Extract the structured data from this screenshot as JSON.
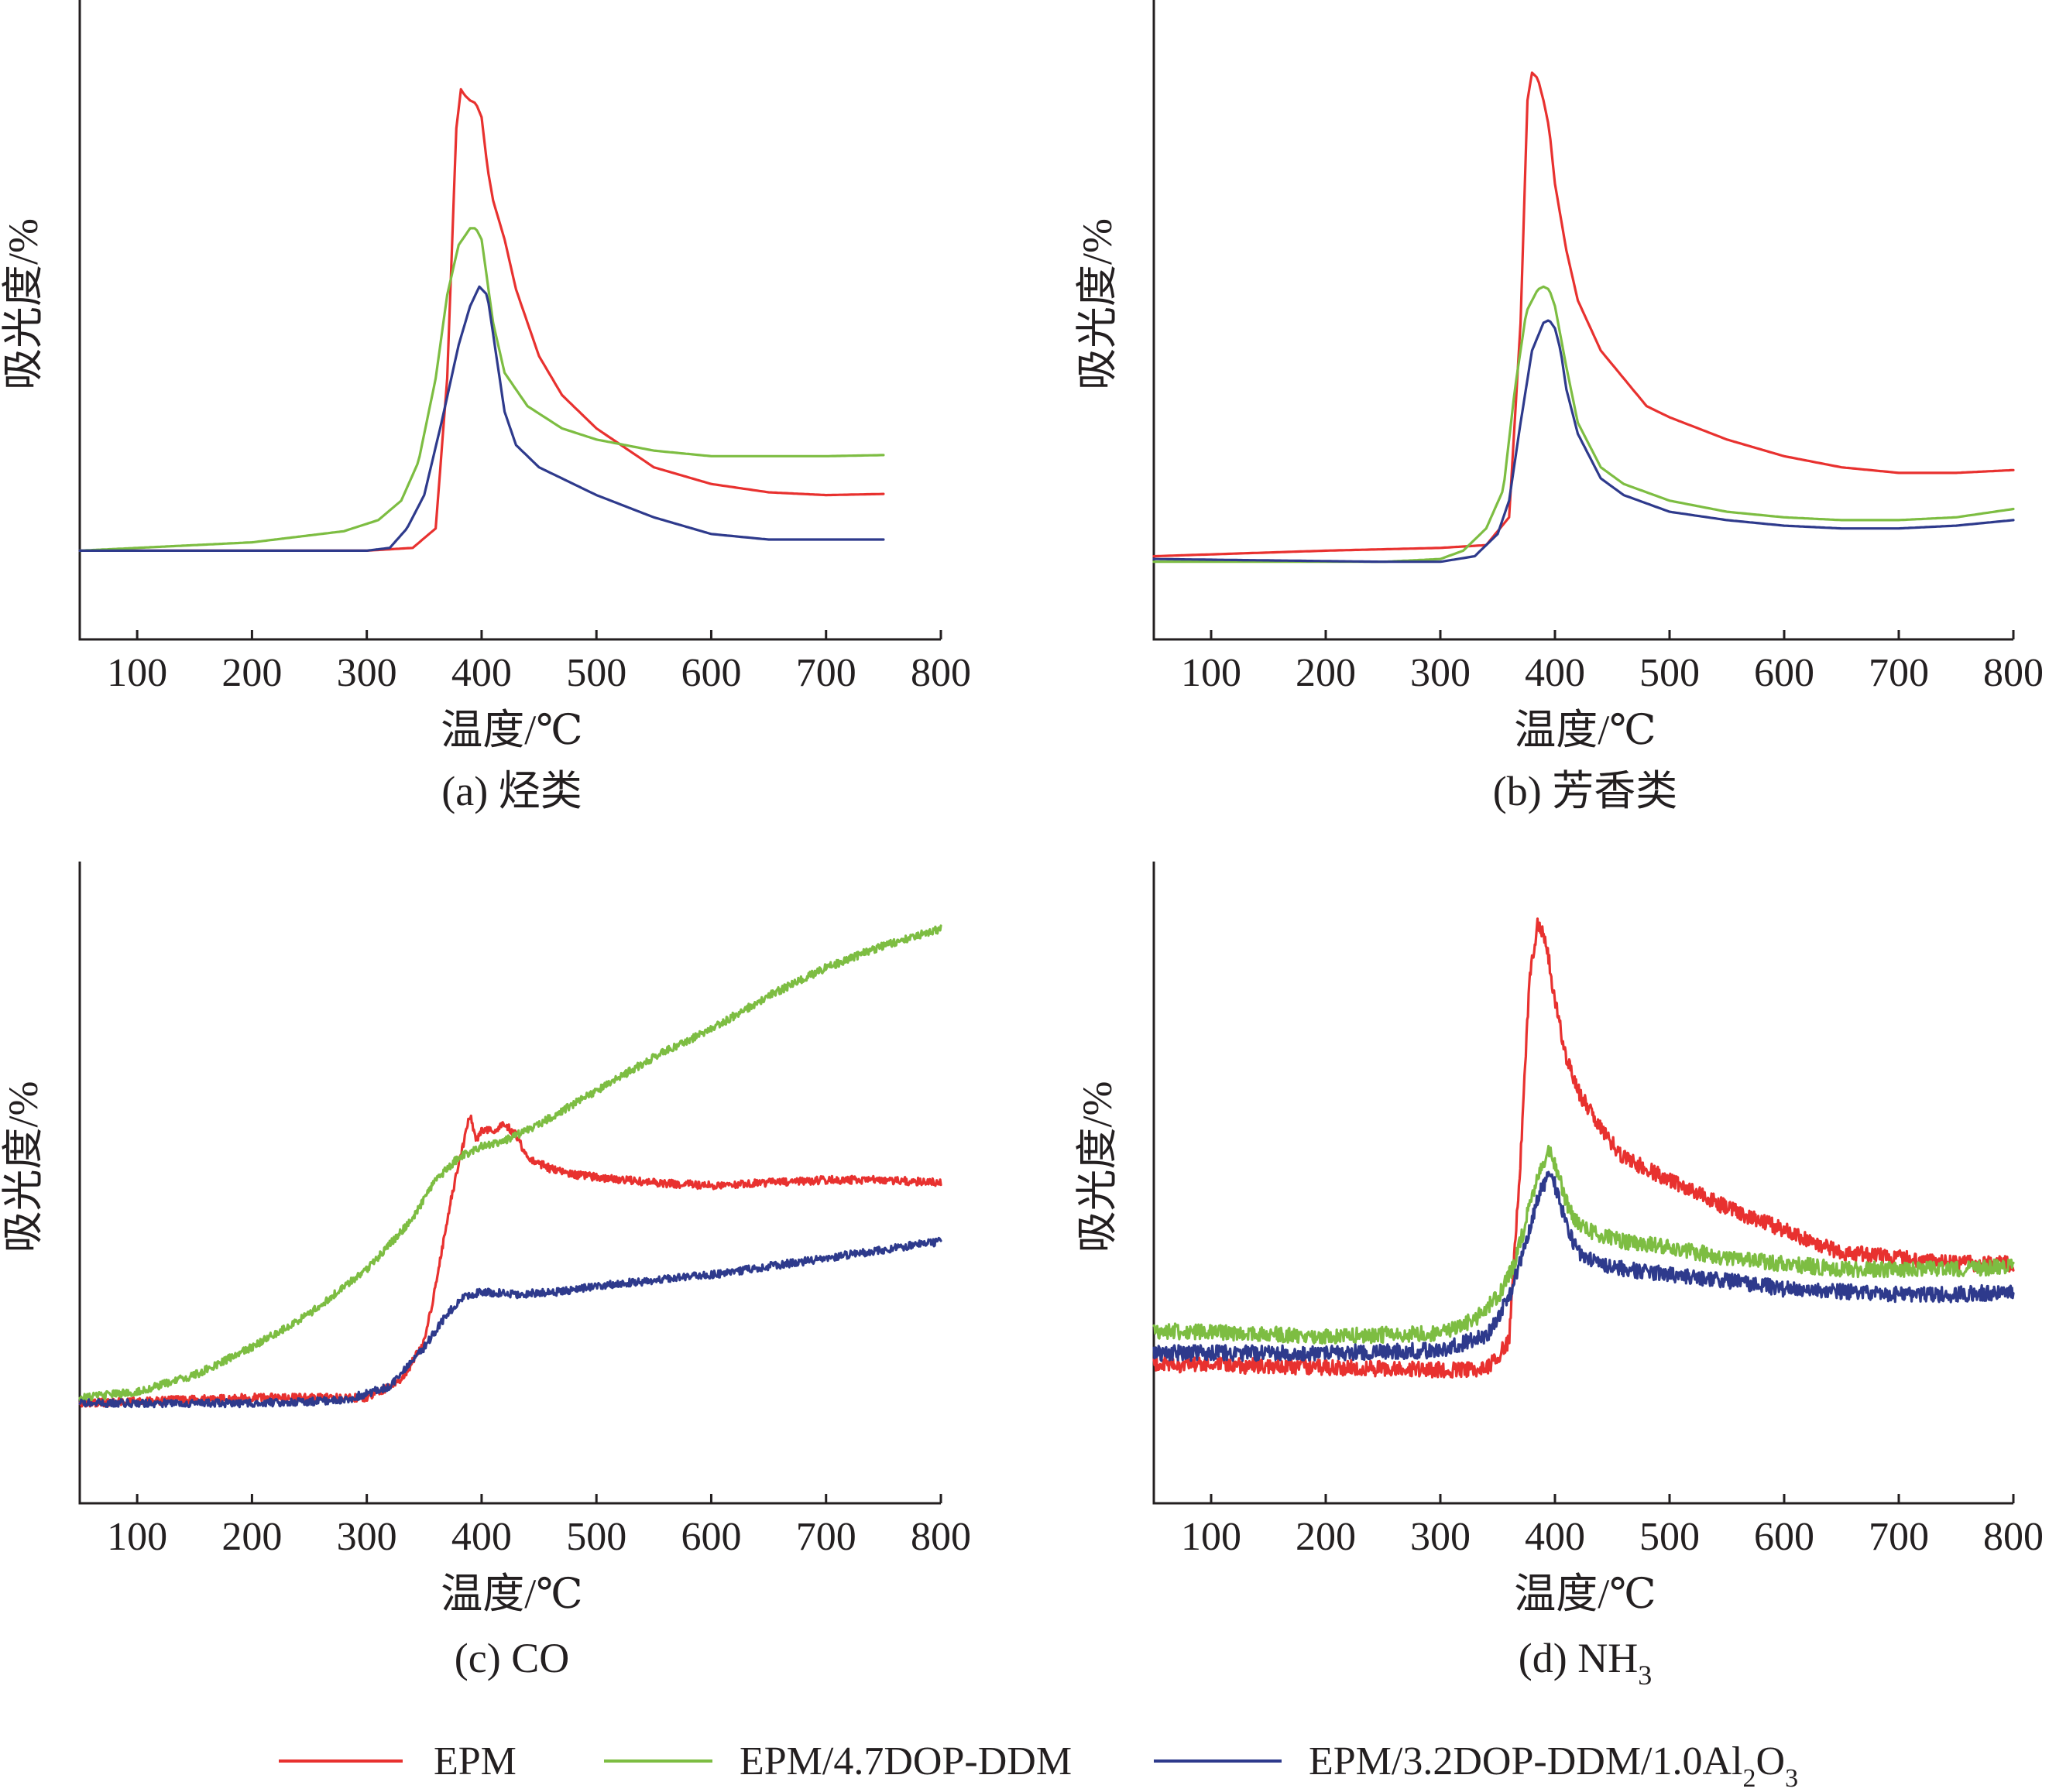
{
  "colors": {
    "EPM": "#e8312f",
    "EPM/4.7DOP-DDM": "#7dbd42",
    "EPM/3.2DOP-DDM/1.0Al2O3": "#2e3a8c"
  },
  "legend": {
    "items": [
      {
        "label": "EPM",
        "color": "#e8312f"
      },
      {
        "label": "EPM/4.7DOP-DDM",
        "color": "#7dbd42"
      },
      {
        "label_main": "EPM/3.2DOP-DDM/1.0Al",
        "label_sub1": "2",
        "label_mid": "O",
        "label_sub2": "3",
        "color": "#2e3a8c"
      }
    ]
  },
  "chart_data": [
    {
      "type": "line",
      "caption": "(a) 烃类",
      "xlabel": "温度/℃",
      "ylabel": "吸光度/%",
      "xlim": [
        50,
        800
      ],
      "ylim": [
        0,
        100
      ],
      "xticks": [
        100,
        200,
        300,
        400,
        500,
        600,
        700,
        800
      ],
      "noise": 0,
      "series": [
        {
          "name": "EPM",
          "color": "#e8312f",
          "x": [
            50,
            300,
            340,
            360,
            370,
            378,
            382,
            385,
            390,
            395,
            400,
            405,
            410,
            420,
            430,
            450,
            470,
            500,
            550,
            600,
            650,
            700,
            750
          ],
          "y": [
            9,
            9,
            9.5,
            13,
            40,
            85,
            92,
            91,
            90,
            89.5,
            87,
            78,
            72,
            65,
            56,
            44,
            37,
            31,
            24,
            21,
            19.5,
            19,
            19.2
          ]
        },
        {
          "name": "EPM/4.7DOP-DDM",
          "color": "#7dbd42",
          "x": [
            50,
            200,
            280,
            310,
            330,
            345,
            360,
            370,
            380,
            390,
            395,
            400,
            410,
            420,
            440,
            470,
            500,
            550,
            600,
            650,
            700,
            750
          ],
          "y": [
            9,
            10.5,
            12.5,
            14.5,
            18,
            25,
            40,
            55,
            64,
            67,
            67,
            65,
            50,
            41,
            35,
            31,
            29,
            27,
            26,
            26,
            26,
            26.2
          ]
        },
        {
          "name": "EPM/3.2DOP-DDM/1.0Al2O3",
          "color": "#2e3a8c",
          "x": [
            50,
            300,
            320,
            335,
            350,
            365,
            380,
            390,
            398,
            405,
            410,
            420,
            430,
            450,
            480,
            500,
            550,
            600,
            650,
            700,
            750
          ],
          "y": [
            9,
            9,
            9.5,
            13,
            19,
            32,
            46,
            53,
            56.5,
            55,
            48,
            34,
            28,
            24,
            21,
            19,
            15,
            12,
            11,
            11,
            11
          ]
        }
      ]
    },
    {
      "type": "line",
      "caption": "(b) 芳香类",
      "xlabel": "温度/℃",
      "ylabel": "吸光度/%",
      "xlim": [
        50,
        800
      ],
      "ylim": [
        0,
        100
      ],
      "xticks": [
        100,
        200,
        300,
        400,
        500,
        600,
        700,
        800
      ],
      "noise": 0,
      "series": [
        {
          "name": "EPM",
          "color": "#e8312f",
          "x": [
            50,
            200,
            300,
            340,
            360,
            370,
            376,
            380,
            385,
            390,
            395,
            400,
            410,
            420,
            440,
            460,
            480,
            500,
            550,
            600,
            650,
            700,
            750,
            800
          ],
          "y": [
            8,
            9,
            9.5,
            10,
            15,
            50,
            90,
            95,
            94,
            90,
            85,
            75,
            63,
            54,
            45,
            40,
            35,
            33,
            29,
            26,
            24,
            23,
            23,
            23.5
          ]
        },
        {
          "name": "EPM/4.7DOP-DDM",
          "color": "#7dbd42",
          "x": [
            50,
            250,
            300,
            320,
            340,
            355,
            365,
            375,
            385,
            390,
            395,
            400,
            410,
            420,
            440,
            460,
            500,
            550,
            600,
            650,
            700,
            750,
            800
          ],
          "y": [
            7,
            7,
            7.5,
            9,
            13,
            20,
            38,
            52,
            56,
            56.5,
            56,
            53,
            42,
            32,
            24,
            21,
            18,
            16,
            15,
            14.5,
            14.5,
            15,
            16.5
          ]
        },
        {
          "name": "EPM/3.2DOP-DDM/1.0Al2O3",
          "color": "#2e3a8c",
          "x": [
            50,
            250,
            300,
            330,
            350,
            360,
            370,
            380,
            390,
            395,
            400,
            405,
            410,
            420,
            440,
            460,
            500,
            550,
            600,
            650,
            700,
            750,
            800
          ],
          "y": [
            7.5,
            7,
            7,
            8,
            12,
            18,
            32,
            45,
            50,
            50.5,
            49,
            45,
            38,
            30,
            22,
            19,
            16,
            14.5,
            13.5,
            13,
            13,
            13.5,
            14.5
          ]
        }
      ]
    },
    {
      "type": "line",
      "caption": "(c) CO",
      "xlabel": "温度/℃",
      "ylabel": "吸光度/%",
      "xlim": [
        50,
        800
      ],
      "ylim": [
        0,
        100
      ],
      "xticks": [
        100,
        200,
        300,
        400,
        500,
        600,
        700,
        800
      ],
      "noise": 0.7,
      "series": [
        {
          "name": "EPM",
          "color": "#e8312f",
          "x": [
            50,
            200,
            300,
            330,
            350,
            360,
            370,
            378,
            385,
            390,
            395,
            400,
            410,
            420,
            430,
            440,
            460,
            480,
            500,
            550,
            600,
            650,
            700,
            750,
            800
          ],
          "y": [
            11,
            12,
            12,
            15,
            22,
            32,
            44,
            52,
            58,
            63,
            58,
            60,
            60,
            61,
            59,
            55,
            53,
            52,
            51.5,
            50.5,
            50,
            50.5,
            51,
            51,
            50.5
          ]
        },
        {
          "name": "EPM/4.7DOP-DDM",
          "color": "#7dbd42",
          "x": [
            50,
            100,
            150,
            200,
            250,
            300,
            340,
            360,
            380,
            400,
            420,
            450,
            500,
            550,
            600,
            650,
            700,
            750,
            800
          ],
          "y": [
            12,
            13,
            16,
            21,
            27,
            35,
            44,
            51,
            55,
            57,
            58,
            61,
            67,
            73,
            78,
            84,
            89,
            93,
            96
          ]
        },
        {
          "name": "EPM/3.2DOP-DDM/1.0Al2O3",
          "color": "#2e3a8c",
          "x": [
            50,
            200,
            280,
            320,
            350,
            370,
            385,
            400,
            430,
            470,
            500,
            550,
            600,
            650,
            700,
            750,
            800
          ],
          "y": [
            11,
            11,
            11.5,
            14,
            21,
            27,
            30,
            31,
            30.5,
            31,
            32,
            33,
            34,
            35.5,
            37,
            38.5,
            40
          ]
        }
      ]
    },
    {
      "type": "line",
      "caption_main": "(d) NH",
      "caption_sub": "3",
      "xlabel": "温度/℃",
      "ylabel": "吸光度/%",
      "xlim": [
        50,
        800
      ],
      "ylim": [
        0,
        100
      ],
      "xticks": [
        100,
        200,
        300,
        400,
        500,
        600,
        700,
        800
      ],
      "noise": 1.4,
      "series": [
        {
          "name": "EPM",
          "color": "#e8312f",
          "x": [
            50,
            300,
            340,
            360,
            370,
            378,
            385,
            390,
            395,
            400,
            410,
            420,
            440,
            460,
            500,
            550,
            600,
            650,
            700,
            750,
            800
          ],
          "y": [
            18,
            17,
            17,
            22,
            55,
            88,
            97,
            95,
            90,
            83,
            73,
            67,
            60,
            55,
            51,
            46,
            42,
            38,
            37,
            36,
            36
          ]
        },
        {
          "name": "EPM/4.7DOP-DDM",
          "color": "#7dbd42",
          "x": [
            50,
            200,
            300,
            330,
            350,
            365,
            375,
            385,
            395,
            400,
            410,
            420,
            440,
            460,
            500,
            550,
            600,
            650,
            700,
            750,
            800
          ],
          "y": [
            24,
            23,
            23.5,
            26,
            30,
            36,
            44,
            52,
            56,
            54,
            47,
            43,
            41,
            40,
            39,
            37,
            36,
            35,
            35,
            35,
            35.5
          ]
        },
        {
          "name": "EPM/3.2DOP-DDM/1.0Al2O3",
          "color": "#2e3a8c",
          "x": [
            50,
            200,
            300,
            340,
            360,
            375,
            385,
            395,
            400,
            410,
            420,
            440,
            460,
            500,
            550,
            600,
            650,
            700,
            750,
            800
          ],
          "y": [
            20,
            20,
            20.5,
            23,
            30,
            40,
            48,
            52,
            50,
            43,
            38,
            36,
            35,
            34,
            33,
            31.5,
            31,
            30.5,
            30.5,
            31
          ]
        }
      ]
    }
  ]
}
